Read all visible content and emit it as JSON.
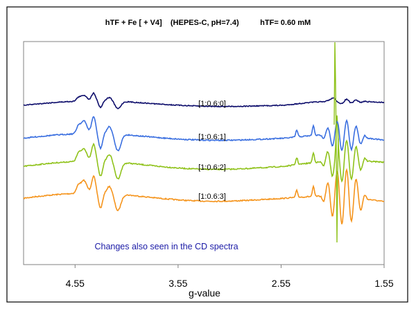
{
  "chart_data": {
    "type": "line",
    "title": "hTF + Fe [ + V4]    (HEPES-C, pH=7.4)          hTF= 0.60 mM",
    "xlabel": "g-value",
    "ylabel": "",
    "xlim": [
      5.05,
      1.55
    ],
    "x_reversed": true,
    "xticks": [
      4.55,
      3.55,
      2.55,
      1.55
    ],
    "xtick_labels": [
      "4.55",
      "3.55",
      "2.55",
      "1.55"
    ],
    "yticks_shown": false,
    "grid": false,
    "annotation": "Changes also seen in the CD spectra",
    "annotation_color": "#1a1aa6",
    "series": [
      {
        "name": "[1:0.6:0]",
        "color": "#0d0d6b"
      },
      {
        "name": "[1:0.6:1]",
        "color": "#3a6fe0"
      },
      {
        "name": "[1:0.6:2]",
        "color": "#8fc21a"
      },
      {
        "name": "[1:0.6:3]",
        "color": "#f5941c"
      }
    ]
  }
}
